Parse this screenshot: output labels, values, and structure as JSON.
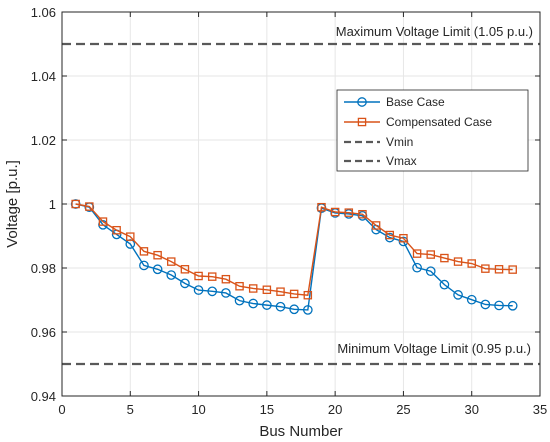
{
  "chart_data": {
    "type": "line",
    "xlabel": "Bus Number",
    "ylabel": "Voltage [p.u.]",
    "xlim": [
      0,
      35
    ],
    "ylim": [
      0.94,
      1.06
    ],
    "xticks": [
      0,
      5,
      10,
      15,
      20,
      25,
      30,
      35
    ],
    "yticks": [
      0.94,
      0.96,
      0.98,
      1,
      1.02,
      1.04,
      1.06
    ],
    "xtick_labels": [
      "0",
      "5",
      "10",
      "15",
      "20",
      "25",
      "30",
      "35"
    ],
    "ytick_labels": [
      "0.94",
      "0.96",
      "0.98",
      "1",
      "1.02",
      "1.04",
      "1.06"
    ],
    "grid": true,
    "legend_position": "upper-right",
    "x": [
      1,
      2,
      3,
      4,
      5,
      6,
      7,
      8,
      9,
      10,
      11,
      12,
      13,
      14,
      15,
      16,
      17,
      18,
      19,
      20,
      21,
      22,
      23,
      24,
      25,
      26,
      27,
      28,
      29,
      30,
      31,
      32,
      33
    ],
    "series": [
      {
        "name": "Base Case",
        "color": "#0072BD",
        "marker": "circle",
        "values": [
          1.0,
          0.999,
          0.9935,
          0.9905,
          0.9875,
          0.9808,
          0.9796,
          0.9778,
          0.9752,
          0.9731,
          0.9727,
          0.9722,
          0.9698,
          0.9689,
          0.9684,
          0.9679,
          0.9671,
          0.9669,
          0.9987,
          0.9972,
          0.9969,
          0.9963,
          0.992,
          0.9895,
          0.9883,
          0.9801,
          0.979,
          0.9748,
          0.9716,
          0.9701,
          0.9686,
          0.9683,
          0.9682
        ]
      },
      {
        "name": "Compensated Case",
        "color": "#D95319",
        "marker": "square",
        "values": [
          1.0,
          0.9992,
          0.9945,
          0.9918,
          0.9898,
          0.9852,
          0.984,
          0.982,
          0.9796,
          0.9775,
          0.9773,
          0.9765,
          0.9743,
          0.9736,
          0.9732,
          0.9726,
          0.9719,
          0.9715,
          0.999,
          0.9975,
          0.9973,
          0.9968,
          0.9933,
          0.9903,
          0.9893,
          0.9845,
          0.9842,
          0.9831,
          0.982,
          0.9814,
          0.9798,
          0.9796,
          0.9795
        ]
      }
    ],
    "reference_lines": [
      {
        "name": "Vmin",
        "y": 0.95,
        "color": "#595959",
        "style": "dashed",
        "annotation": "Minimum Voltage Limit (0.95 p.u.)"
      },
      {
        "name": "Vmax",
        "y": 1.05,
        "color": "#595959",
        "style": "dashed",
        "annotation": "Maximum Voltage Limit (1.05 p.u.)"
      }
    ],
    "legend": [
      "Base Case",
      "Compensated Case",
      "Vmin",
      "Vmax"
    ]
  }
}
